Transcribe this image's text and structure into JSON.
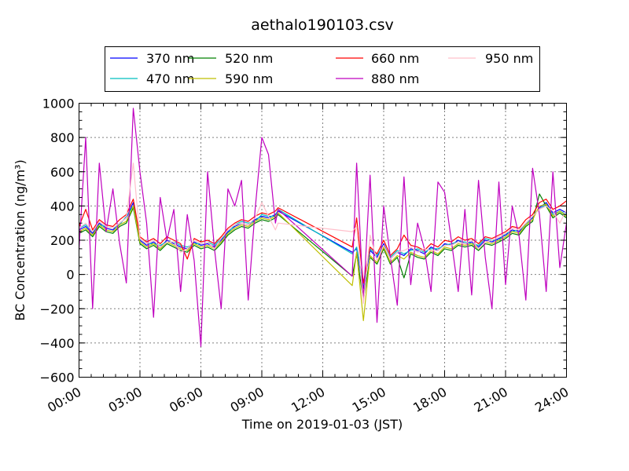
{
  "chart_data": {
    "type": "line",
    "title": "aethalo190103.csv",
    "xlabel": "Time on 2019-01-03 (JST)",
    "ylabel": "BC Concentration (ng/m³)",
    "xlim": [
      0,
      24
    ],
    "ylim": [
      -600,
      1000
    ],
    "xticks": [
      0,
      3,
      6,
      9,
      12,
      15,
      18,
      21,
      24
    ],
    "xtick_labels": [
      "00:00",
      "03:00",
      "06:00",
      "09:00",
      "12:00",
      "15:00",
      "18:00",
      "21:00",
      "24:00"
    ],
    "yticks": [
      -600,
      -400,
      -200,
      0,
      200,
      400,
      600,
      800,
      1000
    ],
    "ytick_labels": [
      "−600",
      "−400",
      "−200",
      "0",
      "200",
      "400",
      "600",
      "800",
      "1000"
    ],
    "grid": true,
    "legend_position": "top-center",
    "x": [
      0,
      0.33,
      0.67,
      1,
      1.33,
      1.67,
      2,
      2.33,
      2.67,
      3,
      3.33,
      3.67,
      4,
      4.33,
      4.67,
      5,
      5.33,
      5.67,
      6,
      6.33,
      6.67,
      7,
      7.33,
      7.67,
      8,
      8.33,
      8.67,
      9,
      9.33,
      9.67,
      9.8,
      13.45,
      13.67,
      14,
      14.33,
      14.67,
      15,
      15.33,
      15.67,
      16,
      16.33,
      16.67,
      17,
      17.33,
      17.67,
      18,
      18.33,
      18.67,
      19,
      19.33,
      19.67,
      20,
      20.33,
      20.67,
      21,
      21.33,
      21.67,
      22,
      22.33,
      22.67,
      23,
      23.33,
      23.67,
      24
    ],
    "series": [
      {
        "name": "370 nm",
        "color": "#0000ff",
        "values": [
          260,
          280,
          240,
          300,
          270,
          260,
          300,
          330,
          420,
          200,
          170,
          190,
          160,
          200,
          180,
          160,
          150,
          190,
          170,
          180,
          160,
          200,
          250,
          280,
          300,
          290,
          320,
          340,
          330,
          350,
          370,
          130,
          150,
          -80,
          140,
          100,
          180,
          90,
          130,
          110,
          150,
          140,
          120,
          160,
          140,
          180,
          170,
          200,
          180,
          190,
          160,
          200,
          190,
          210,
          230,
          260,
          250,
          300,
          330,
          390,
          420,
          360,
          380,
          360
        ]
      },
      {
        "name": "470 nm",
        "color": "#00bfbf",
        "values": [
          270,
          290,
          250,
          290,
          280,
          270,
          290,
          340,
          400,
          210,
          180,
          180,
          170,
          190,
          190,
          170,
          160,
          180,
          180,
          190,
          170,
          210,
          240,
          290,
          310,
          300,
          310,
          350,
          340,
          340,
          380,
          120,
          160,
          -60,
          150,
          110,
          170,
          100,
          140,
          120,
          140,
          150,
          130,
          150,
          150,
          170,
          180,
          190,
          190,
          180,
          170,
          210,
          200,
          200,
          240,
          250,
          260,
          290,
          340,
          380,
          410,
          350,
          370,
          350
        ]
      },
      {
        "name": "520 nm",
        "color": "#008000",
        "values": [
          240,
          260,
          220,
          280,
          250,
          240,
          280,
          300,
          390,
          180,
          150,
          170,
          140,
          180,
          160,
          140,
          130,
          170,
          150,
          160,
          140,
          180,
          230,
          260,
          280,
          270,
          300,
          320,
          310,
          330,
          350,
          -10,
          120,
          -150,
          100,
          60,
          150,
          60,
          100,
          -20,
          120,
          100,
          90,
          130,
          110,
          150,
          140,
          170,
          160,
          170,
          140,
          180,
          170,
          190,
          210,
          240,
          230,
          280,
          310,
          470,
          400,
          330,
          360,
          330
        ]
      },
      {
        "name": "590 nm",
        "color": "#bfbf00",
        "values": [
          250,
          270,
          230,
          290,
          260,
          250,
          290,
          310,
          400,
          190,
          160,
          180,
          150,
          190,
          170,
          150,
          140,
          180,
          160,
          170,
          150,
          190,
          240,
          270,
          290,
          280,
          310,
          330,
          320,
          340,
          360,
          -65,
          130,
          -270,
          110,
          70,
          160,
          70,
          110,
          90,
          130,
          110,
          100,
          140,
          120,
          160,
          150,
          180,
          170,
          180,
          150,
          190,
          180,
          200,
          220,
          250,
          240,
          290,
          320,
          400,
          410,
          340,
          370,
          340
        ]
      },
      {
        "name": "660 nm",
        "color": "#ff0000",
        "values": [
          280,
          380,
          260,
          320,
          290,
          280,
          320,
          350,
          440,
          220,
          190,
          210,
          180,
          220,
          200,
          180,
          90,
          210,
          190,
          200,
          180,
          220,
          270,
          300,
          320,
          310,
          340,
          360,
          350,
          370,
          390,
          160,
          330,
          -50,
          160,
          120,
          200,
          110,
          150,
          230,
          170,
          160,
          140,
          180,
          160,
          200,
          190,
          220,
          200,
          210,
          180,
          220,
          210,
          230,
          250,
          280,
          270,
          320,
          350,
          420,
          440,
          380,
          400,
          430
        ]
      },
      {
        "name": "880 nm",
        "color": "#bf00bf",
        "values": [
          150,
          800,
          -200,
          650,
          250,
          500,
          180,
          -50,
          970,
          600,
          300,
          -250,
          450,
          200,
          380,
          -100,
          350,
          80,
          -420,
          600,
          150,
          -200,
          500,
          400,
          550,
          -150,
          380,
          800,
          700,
          300,
          380,
          -10,
          650,
          -150,
          580,
          -280,
          400,
          100,
          -180,
          570,
          -60,
          300,
          150,
          -100,
          540,
          480,
          200,
          -100,
          380,
          -120,
          550,
          100,
          -200,
          540,
          -60,
          400,
          220,
          -150,
          620,
          350,
          -100,
          600,
          40,
          300
        ]
      },
      {
        "name": "950 nm",
        "color": "#ffc0cb",
        "values": [
          270,
          300,
          250,
          310,
          280,
          270,
          300,
          330,
          650,
          210,
          180,
          200,
          160,
          190,
          190,
          130,
          150,
          200,
          180,
          190,
          150,
          210,
          260,
          290,
          300,
          290,
          330,
          420,
          340,
          260,
          300,
          250,
          280,
          -170,
          230,
          80,
          170,
          90,
          130,
          140,
          160,
          130,
          150,
          140,
          140,
          170,
          170,
          190,
          180,
          200,
          150,
          190,
          200,
          220,
          240,
          270,
          260,
          300,
          340,
          380,
          400,
          370,
          300,
          380
        ]
      }
    ]
  }
}
